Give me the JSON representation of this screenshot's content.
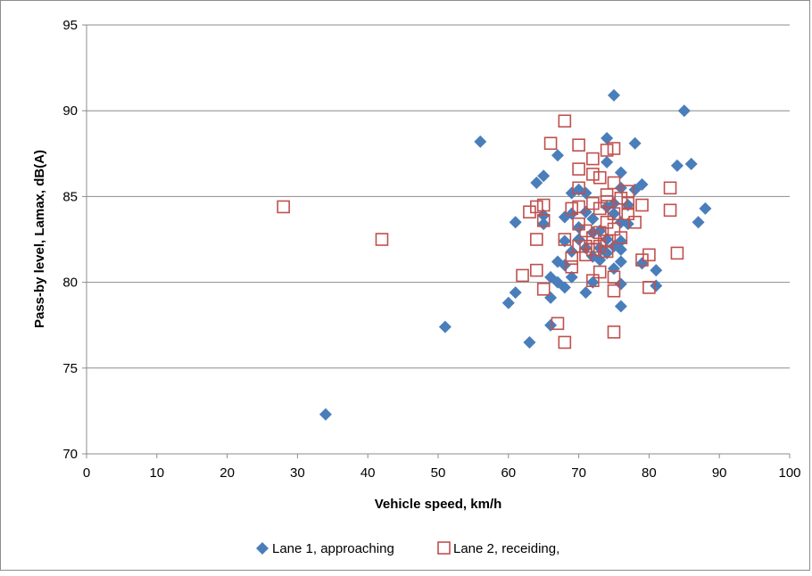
{
  "chart_data": {
    "type": "scatter",
    "xlabel": "Vehicle speed, km/h",
    "ylabel": "Pass-by level, Lamax, dB(A)",
    "xlim": [
      0,
      100
    ],
    "ylim": [
      70,
      95
    ],
    "xticks": [
      0,
      10,
      20,
      30,
      40,
      50,
      60,
      70,
      80,
      90,
      100
    ],
    "yticks": [
      70,
      75,
      80,
      85,
      90,
      95
    ],
    "grid": "horizontal major gridlines",
    "legend": "bottom",
    "series": [
      {
        "name": "Lane 1, approaching",
        "marker": "diamond",
        "color": "#4a7ebb",
        "points": [
          [
            34,
            72.3
          ],
          [
            51,
            77.4
          ],
          [
            56,
            88.2
          ],
          [
            60,
            78.8
          ],
          [
            61,
            79.4
          ],
          [
            61,
            83.5
          ],
          [
            63,
            76.5
          ],
          [
            64,
            85.8
          ],
          [
            65,
            86.2
          ],
          [
            65,
            83.9
          ],
          [
            65,
            83.4
          ],
          [
            66,
            77.5
          ],
          [
            66,
            79.1
          ],
          [
            66,
            80.3
          ],
          [
            67,
            81.2
          ],
          [
            67,
            80.0
          ],
          [
            67,
            87.4
          ],
          [
            68,
            79.7
          ],
          [
            68,
            82.4
          ],
          [
            68,
            83.8
          ],
          [
            68,
            81.0
          ],
          [
            69,
            85.2
          ],
          [
            69,
            84.0
          ],
          [
            69,
            80.3
          ],
          [
            69,
            81.8
          ],
          [
            70,
            83.2
          ],
          [
            70,
            82.5
          ],
          [
            70,
            85.4
          ],
          [
            71,
            79.4
          ],
          [
            71,
            82.0
          ],
          [
            71,
            84.1
          ],
          [
            71,
            85.2
          ],
          [
            72,
            81.5
          ],
          [
            72,
            83.7
          ],
          [
            72,
            82.9
          ],
          [
            72,
            80.0
          ],
          [
            73,
            81.3
          ],
          [
            73,
            82.0
          ],
          [
            73,
            83.0
          ],
          [
            74,
            88.4
          ],
          [
            74,
            87.0
          ],
          [
            74,
            84.4
          ],
          [
            74,
            82.5
          ],
          [
            74,
            81.7
          ],
          [
            75,
            90.9
          ],
          [
            75,
            84.6
          ],
          [
            75,
            84.0
          ],
          [
            75,
            82.1
          ],
          [
            75,
            80.8
          ],
          [
            76,
            86.4
          ],
          [
            76,
            85.5
          ],
          [
            76,
            83.5
          ],
          [
            76,
            82.4
          ],
          [
            76,
            81.9
          ],
          [
            76,
            81.2
          ],
          [
            76,
            79.9
          ],
          [
            76,
            78.6
          ],
          [
            77,
            83.4
          ],
          [
            77,
            84.5
          ],
          [
            78,
            88.1
          ],
          [
            78,
            85.4
          ],
          [
            79,
            85.7
          ],
          [
            79,
            81.1
          ],
          [
            81,
            79.8
          ],
          [
            81,
            80.7
          ],
          [
            84,
            86.8
          ],
          [
            85,
            90.0
          ],
          [
            86,
            86.9
          ],
          [
            87,
            83.5
          ],
          [
            88,
            84.3
          ]
        ]
      },
      {
        "name": "Lane 2, receiding,",
        "marker": "square",
        "color": "#c0504d",
        "points": [
          [
            28,
            84.4
          ],
          [
            42,
            82.5
          ],
          [
            62,
            80.4
          ],
          [
            63,
            84.1
          ],
          [
            64,
            80.7
          ],
          [
            64,
            82.5
          ],
          [
            64,
            84.4
          ],
          [
            65,
            84.5
          ],
          [
            65,
            83.6
          ],
          [
            65,
            79.6
          ],
          [
            66,
            88.1
          ],
          [
            67,
            77.6
          ],
          [
            68,
            89.4
          ],
          [
            68,
            76.5
          ],
          [
            68,
            82.5
          ],
          [
            69,
            84.3
          ],
          [
            69,
            81.4
          ],
          [
            69,
            80.9
          ],
          [
            70,
            88.0
          ],
          [
            70,
            86.6
          ],
          [
            70,
            85.5
          ],
          [
            70,
            84.4
          ],
          [
            70,
            83.4
          ],
          [
            70,
            82.1
          ],
          [
            71,
            83.0
          ],
          [
            71,
            82.1
          ],
          [
            71,
            81.6
          ],
          [
            72,
            87.2
          ],
          [
            72,
            86.3
          ],
          [
            72,
            84.6
          ],
          [
            72,
            82.6
          ],
          [
            72,
            81.9
          ],
          [
            72,
            80.1
          ],
          [
            73,
            86.1
          ],
          [
            73,
            84.3
          ],
          [
            73,
            82.9
          ],
          [
            73,
            82.1
          ],
          [
            73,
            80.6
          ],
          [
            74,
            87.7
          ],
          [
            74,
            85.1
          ],
          [
            74,
            84.7
          ],
          [
            74,
            83.5
          ],
          [
            74,
            82.4
          ],
          [
            74,
            81.8
          ],
          [
            75,
            87.8
          ],
          [
            75,
            85.8
          ],
          [
            75,
            84.0
          ],
          [
            75,
            83.1
          ],
          [
            75,
            80.3
          ],
          [
            75,
            79.5
          ],
          [
            75,
            77.1
          ],
          [
            76,
            84.9
          ],
          [
            76,
            82.6
          ],
          [
            77,
            84.6
          ],
          [
            77,
            84.0
          ],
          [
            77,
            85.3
          ],
          [
            78,
            83.5
          ],
          [
            79,
            84.5
          ],
          [
            79,
            81.3
          ],
          [
            80,
            81.6
          ],
          [
            80,
            79.7
          ],
          [
            83,
            85.5
          ],
          [
            83,
            84.2
          ],
          [
            84,
            81.7
          ]
        ]
      }
    ]
  }
}
